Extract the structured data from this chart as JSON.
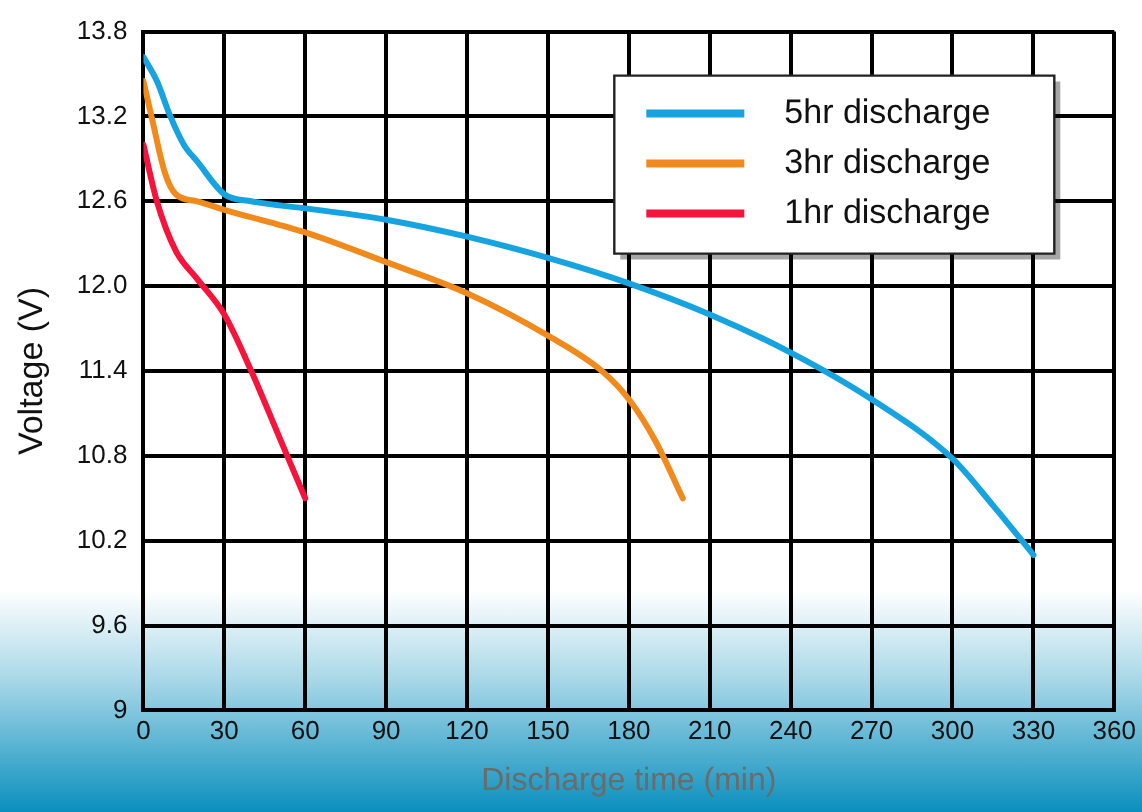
{
  "chart_data": {
    "type": "line",
    "xlabel": "Discharge time (min)",
    "ylabel": "Voltage (V)",
    "xlim": [
      0,
      360
    ],
    "xticks": [
      0,
      30,
      60,
      90,
      120,
      150,
      180,
      210,
      240,
      270,
      300,
      330,
      360
    ],
    "ylim": [
      9,
      13.8
    ],
    "yticks": [
      9,
      9.6,
      10.2,
      10.8,
      11.4,
      {
        "value": 12,
        "label": "12.0"
      },
      12.6,
      13.2,
      13.8
    ],
    "grid": true,
    "legend": "top right",
    "marker": "none",
    "line_style": "solid",
    "series": [
      {
        "name": "5hr discharge",
        "color": "#16a3e0",
        "x": [
          0,
          5,
          10,
          15,
          20,
          30,
          40,
          60,
          90,
          120,
          150,
          180,
          210,
          240,
          270,
          300,
          315,
          330
        ],
        "values": [
          13.62,
          13.45,
          13.2,
          13.0,
          12.88,
          12.65,
          12.6,
          12.55,
          12.47,
          12.35,
          12.2,
          12.02,
          11.8,
          11.53,
          11.2,
          10.78,
          10.45,
          10.1
        ]
      },
      {
        "name": "3hr discharge",
        "color": "#f08a1c",
        "x": [
          0,
          3,
          8,
          12,
          20,
          30,
          60,
          90,
          120,
          150,
          170,
          180,
          190,
          200
        ],
        "values": [
          13.45,
          13.2,
          12.8,
          12.65,
          12.6,
          12.54,
          12.38,
          12.17,
          11.95,
          11.65,
          11.4,
          11.2,
          10.9,
          10.5
        ]
      },
      {
        "name": "1hr discharge",
        "color": "#f4143c",
        "x": [
          0,
          5,
          12,
          20,
          30,
          40,
          50,
          60
        ],
        "values": [
          13.0,
          12.6,
          12.25,
          12.05,
          11.8,
          11.4,
          10.95,
          10.5
        ]
      }
    ]
  }
}
